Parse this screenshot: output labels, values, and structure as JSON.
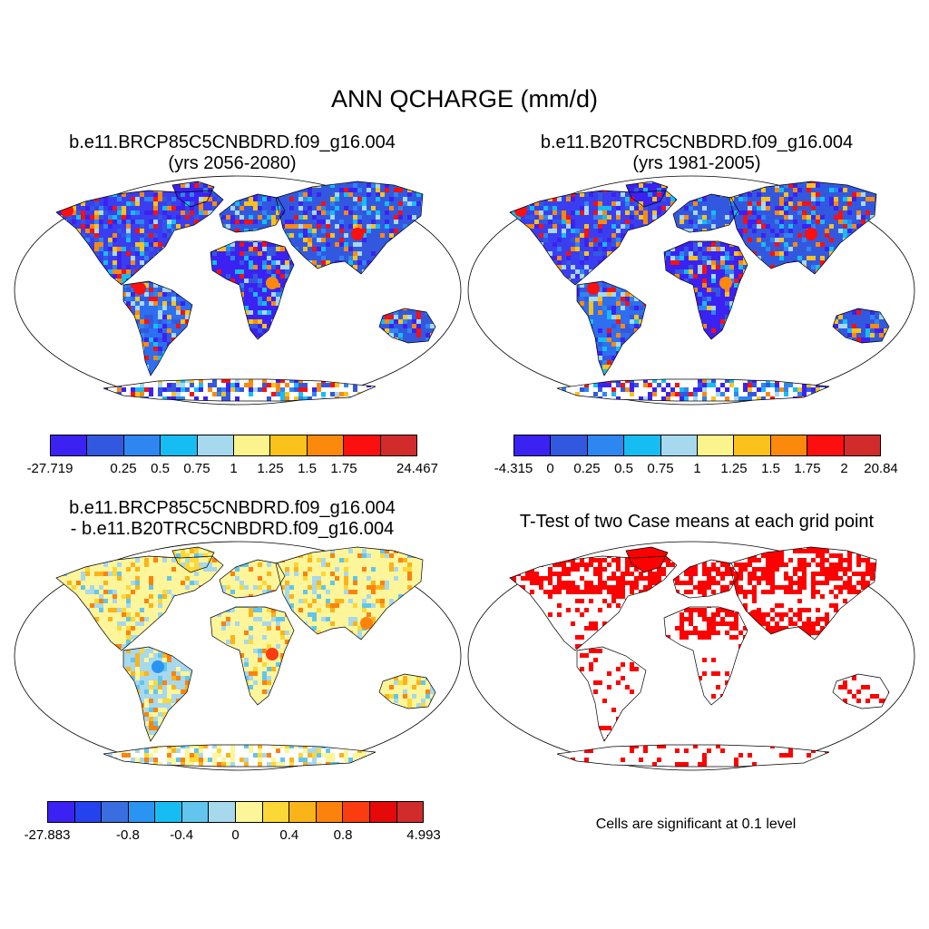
{
  "main_title": "ANN QCHARGE (mm/d)",
  "panels": {
    "top_left": {
      "title_line1": "b.e11.BRCP85C5CNBDRD.f09_g16.004",
      "title_line2": "(yrs 2056-2080)"
    },
    "top_right": {
      "title_line1": "b.e11.B20TRC5CNBDRD.f09_g16.004",
      "title_line2": "(yrs 1981-2005)"
    },
    "bottom_left": {
      "title_line1": "b.e11.BRCP85C5CNBDRD.f09_g16.004",
      "title_line2": "- b.e11.B20TRC5CNBDRD.f09_g16.004"
    },
    "bottom_right": {
      "title_line1": "T-Test of two Case means at each grid point",
      "note": "Cells are significant at 0.1 level"
    }
  },
  "colorbars": {
    "top_left": {
      "colors": [
        "#3b22f2",
        "#3358e0",
        "#2e86f0",
        "#16bdf2",
        "#a6d8ee",
        "#fbf38c",
        "#fbc21c",
        "#fb8a0c",
        "#fb0f0f",
        "#d22b2b"
      ],
      "labels": [
        "-27.719",
        "0.25",
        "0.5",
        "0.75",
        "1",
        "1.25",
        "1.5",
        "1.75",
        "24.467"
      ],
      "label_boundaries": [
        0,
        2,
        3,
        4,
        5,
        6,
        7,
        8,
        10
      ]
    },
    "top_right": {
      "colors": [
        "#3b22f2",
        "#3358e0",
        "#2e86f0",
        "#16bdf2",
        "#a6d8ee",
        "#fbf38c",
        "#fbc21c",
        "#fb8a0c",
        "#fb0f0f",
        "#d22b2b"
      ],
      "labels": [
        "-4.315",
        "0",
        "0.25",
        "0.5",
        "0.75",
        "1",
        "1.25",
        "1.5",
        "1.75",
        "2",
        "20.84"
      ],
      "label_boundaries": [
        0,
        1,
        2,
        3,
        4,
        5,
        6,
        7,
        8,
        9,
        10
      ]
    },
    "bottom_left": {
      "colors": [
        "#3b22f2",
        "#2443ee",
        "#3a6ee0",
        "#2a94f2",
        "#16bdf2",
        "#62c5ee",
        "#a6d8ee",
        "#fdf59a",
        "#fcd836",
        "#fbb31a",
        "#fb820d",
        "#fb3c10",
        "#e40a0a",
        "#d22b2b"
      ],
      "labels": [
        "-27.883",
        "-0.8",
        "-0.4",
        "0",
        "0.4",
        "0.8",
        "4.993"
      ],
      "label_boundaries": [
        0,
        3,
        5,
        7,
        9,
        11,
        14
      ]
    }
  },
  "legend_colors": {
    "significant": "#ff0000",
    "ocean": "#ffffff",
    "coastline": "#000000"
  }
}
